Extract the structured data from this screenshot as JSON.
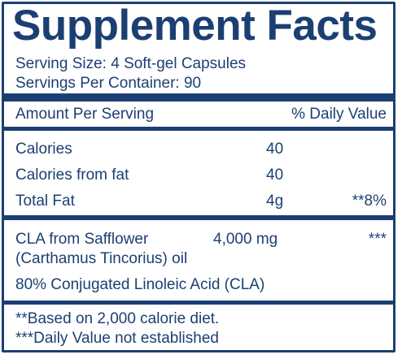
{
  "label": {
    "title": "Supplement Facts",
    "serving_size": "Serving Size: 4 Soft-gel Capsules",
    "servings_per_container": "Servings Per Container:  90",
    "header": {
      "amount": "Amount Per Serving",
      "daily_value": "% Daily Value"
    },
    "rows": [
      {
        "name": "Calories",
        "amount": "40",
        "dv": ""
      },
      {
        "name": "Calories from fat",
        "amount": "40",
        "dv": ""
      },
      {
        "name": "Total Fat",
        "amount": "4g",
        "dv": "**8%"
      }
    ],
    "ingredient": {
      "name_line1": "CLA from Safflower",
      "name_line2": "(Carthamus Tincorius) oil",
      "amount": "4,000 mg",
      "dv": "***",
      "detail": "80% Conjugated Linoleic Acid (CLA)"
    },
    "footnotes": [
      "**Based on 2,000 calorie diet.",
      "***Daily Value not established"
    ]
  },
  "colors": {
    "ink": "#1c3f73",
    "background": "#ffffff"
  }
}
